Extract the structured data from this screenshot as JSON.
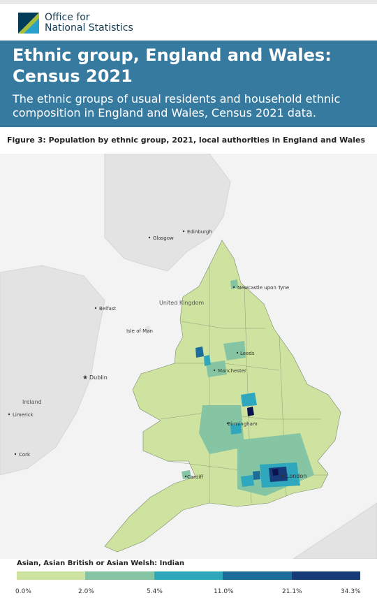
{
  "header": {
    "logo_line1": "Office for",
    "logo_line2": "National Statistics"
  },
  "banner": {
    "title_line1": "Ethnic group, England and Wales:",
    "title_line2": "Census 2021",
    "subtitle_line1": "The ethnic groups of usual residents and household ethnic",
    "subtitle_line2": "composition in England and Wales, Census 2021 data."
  },
  "figure": {
    "title": "Figure 3: Population by ethnic group, 2021, local authorities in England and Wales"
  },
  "map": {
    "places": {
      "edinburgh": "Edinburgh",
      "glasgow": "Glasgow",
      "newcastle": "Newcastle upon Tyne",
      "belfast": "Belfast",
      "uk": "United Kingdom",
      "isle_of_man": "Isle of Man",
      "leeds": "Leeds",
      "manchester": "Manchester",
      "dublin": "Dublin",
      "ireland": "Ireland",
      "limerick": "Limerick",
      "birmingham": "Birmingham",
      "cork": "Cork",
      "cardiff": "Cardiff",
      "london": "London"
    }
  },
  "legend": {
    "title": "Asian, Asian British or Asian Welsh: Indian",
    "colors": [
      "#cfe3a0",
      "#86c5a3",
      "#2fa7bd",
      "#1b6d9a",
      "#173b79",
      "#0c1450"
    ],
    "ticks": [
      "0.0%",
      "2.0%",
      "5.4%",
      "11.0%",
      "21.1%",
      "34.3%"
    ]
  }
}
